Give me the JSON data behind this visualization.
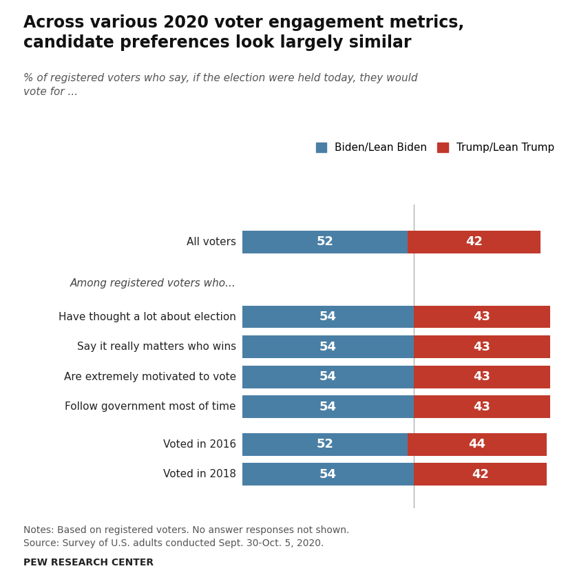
{
  "title": "Across various 2020 voter engagement metrics,\ncandidate preferences look largely similar",
  "subtitle": "% of registered voters who say, if the election were held today, they would\nvote for ...",
  "categories": [
    "All voters",
    "Among registered voters who...",
    "Have thought a lot about election",
    "Say it really matters who wins",
    "Are extremely motivated to vote",
    "Follow government most of time",
    "Voted in 2016",
    "Voted in 2018"
  ],
  "biden_values": [
    52,
    null,
    54,
    54,
    54,
    54,
    52,
    54
  ],
  "trump_values": [
    42,
    null,
    43,
    43,
    43,
    43,
    44,
    42
  ],
  "biden_color": "#4a7fa5",
  "trump_color": "#c0392b",
  "legend_biden": "Biden/Lean Biden",
  "legend_trump": "Trump/Lean Trump",
  "notes": "Notes: Based on registered voters. No answer responses not shown.\nSource: Survey of U.S. adults conducted Sept. 30-Oct. 5, 2020.",
  "source_label": "PEW RESEARCH CENTER",
  "bar_height": 0.6,
  "vline_x": 54,
  "y_positions": {
    "All voters": 7.0,
    "Among registered voters who...": 5.9,
    "Have thought a lot about election": 5.0,
    "Say it really matters who wins": 4.2,
    "Are extremely motivated to vote": 3.4,
    "Follow government most of time": 2.6,
    "Voted in 2016": 1.6,
    "Voted in 2018": 0.8
  },
  "xlim_max": 100,
  "ylim": [
    -0.1,
    8.0
  ]
}
